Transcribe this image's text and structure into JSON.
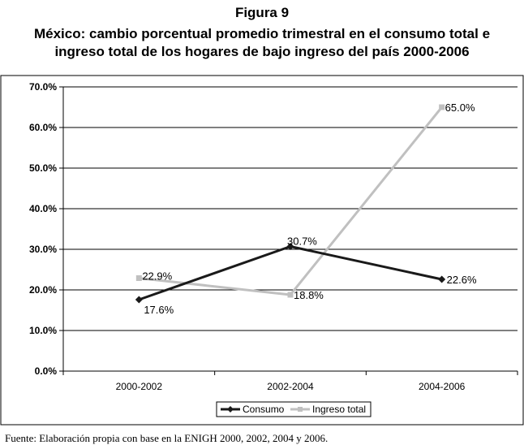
{
  "figure_label": "Figura 9",
  "title_line1": "México: cambio porcentual promedio trimestral en el consumo total e",
  "title_line2": "ingreso total de los hogares de bajo ingreso del país 2000-2006",
  "source": "Fuente: Elaboración propia con base en la ENIGH 2000, 2002, 2004 y 2006.",
  "colors": {
    "consumo": "#1a1a1a",
    "ingreso": "#c0c0c0",
    "grid": "#000000"
  },
  "chart_data": {
    "type": "line",
    "categories": [
      "2000-2002",
      "2002-2004",
      "2004-2006"
    ],
    "ylim": [
      0,
      70
    ],
    "yticks": [
      "0.0%",
      "10.0%",
      "20.0%",
      "30.0%",
      "40.0%",
      "50.0%",
      "60.0%",
      "70.0%"
    ],
    "grid": true,
    "legend_position": "bottom",
    "series": [
      {
        "name": "Consumo",
        "values": [
          17.6,
          30.7,
          22.6
        ],
        "labels": [
          "17.6%",
          "30.7%",
          "22.6%"
        ],
        "marker": "diamond"
      },
      {
        "name": "Ingreso total",
        "values": [
          22.9,
          18.8,
          65.0
        ],
        "labels": [
          "22.9%",
          "18.8%",
          "65.0%"
        ],
        "marker": "square"
      }
    ]
  }
}
